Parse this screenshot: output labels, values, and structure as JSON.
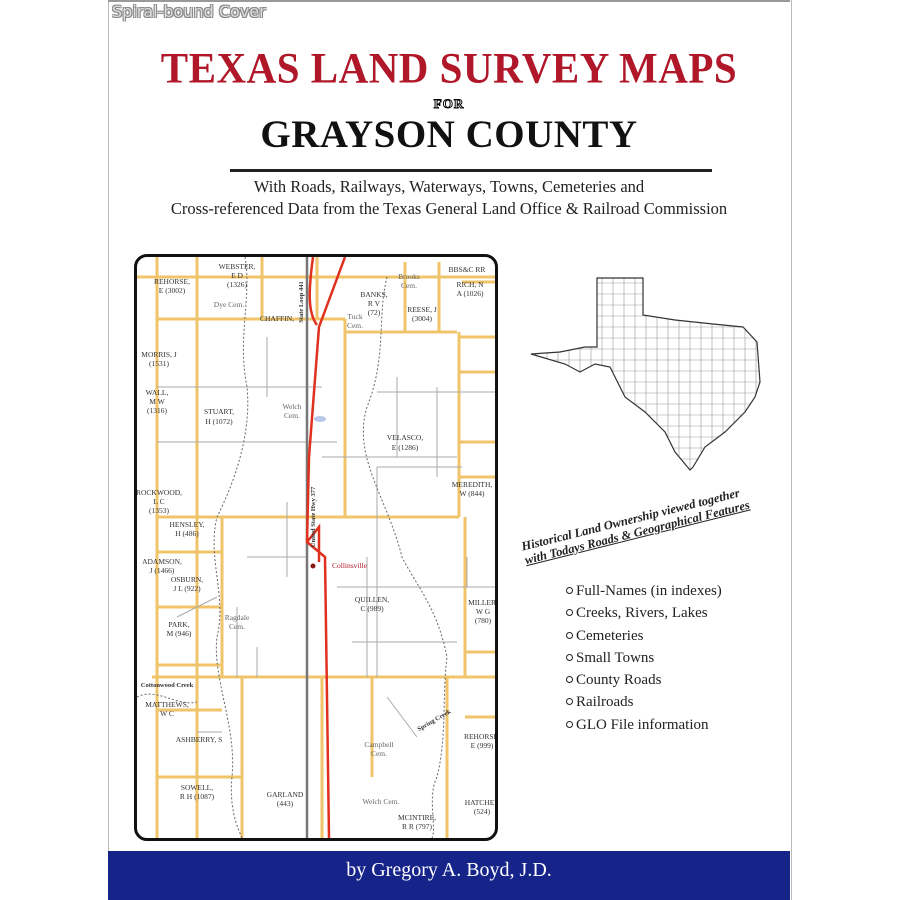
{
  "badge": "Spiral-bound Cover",
  "cover": {
    "title": "TEXAS LAND SURVEY MAPS",
    "for": "FOR",
    "county": "GRAYSON COUNTY",
    "subtitle_line1": "With Roads, Railways, Waterways, Towns, Cemeteries and",
    "subtitle_line2": "Cross-referenced Data from the Texas General Land Office & Railroad Commission",
    "author": "by Gregory A. Boyd, J.D."
  },
  "colors": {
    "title_red": "#b0182a",
    "footer_blue": "#16248a",
    "survey_lines": "#f0c46a",
    "highway": "#e0301e"
  },
  "map": {
    "labels": [
      "WEBSTER,",
      "E D",
      "(1326)",
      "REHORSE,",
      "E (3002)",
      "Dye Cem.",
      "CHAFFIN,",
      "BANKS,",
      "R V",
      "(72)",
      "Tuck",
      "Cem.",
      "Brooks",
      "Cem.",
      "REESE, J",
      "(3004)",
      "BBS&C RR",
      "RICH, N",
      "A (1026)",
      "MORRIS, J",
      "(1531)",
      "WALL,",
      "M W",
      "(1316)",
      "STUART,",
      "H (1072)",
      "Welch",
      "Cem.",
      "VELASCO,",
      "E (1286)",
      "ROCKWOOD,",
      "L C",
      "(1353)",
      "HENSLEY,",
      "H (486)",
      "MEREDITH,",
      "W (844)",
      "ADAMSON,",
      "J (1466)",
      "OSBURN,",
      "J L (922)",
      "Collinsville",
      "QUILLEN,",
      "C (989)",
      "Ragdale",
      "Cem.",
      "PARK,",
      "M (946)",
      "MATTHEWS,",
      "W C",
      "ASHBERRY, S",
      "Campbell",
      "Cem.",
      "GARLAND",
      "(443)",
      "SOWELL,",
      "R H (1087)",
      "Welch Cem.",
      "MCINTIRE,",
      "R R (797)",
      "HATCHER",
      "(524)",
      "REHORSE,",
      "E (999)",
      "MILLER,",
      "W G",
      "(780)",
      "United State Hwy 377",
      "State Loop 441",
      "Spring Creek",
      "Cottonwood Creek"
    ]
  },
  "features": {
    "heading_line1": "Historical Land Ownership viewed together",
    "heading_line2": "with Todays Roads & Geographical Features",
    "items": [
      "Full-Names (in indexes)",
      "Creeks, Rivers, Lakes",
      "Cemeteries",
      "Small Towns",
      "County Roads",
      "Railroads",
      "GLO File information"
    ]
  }
}
